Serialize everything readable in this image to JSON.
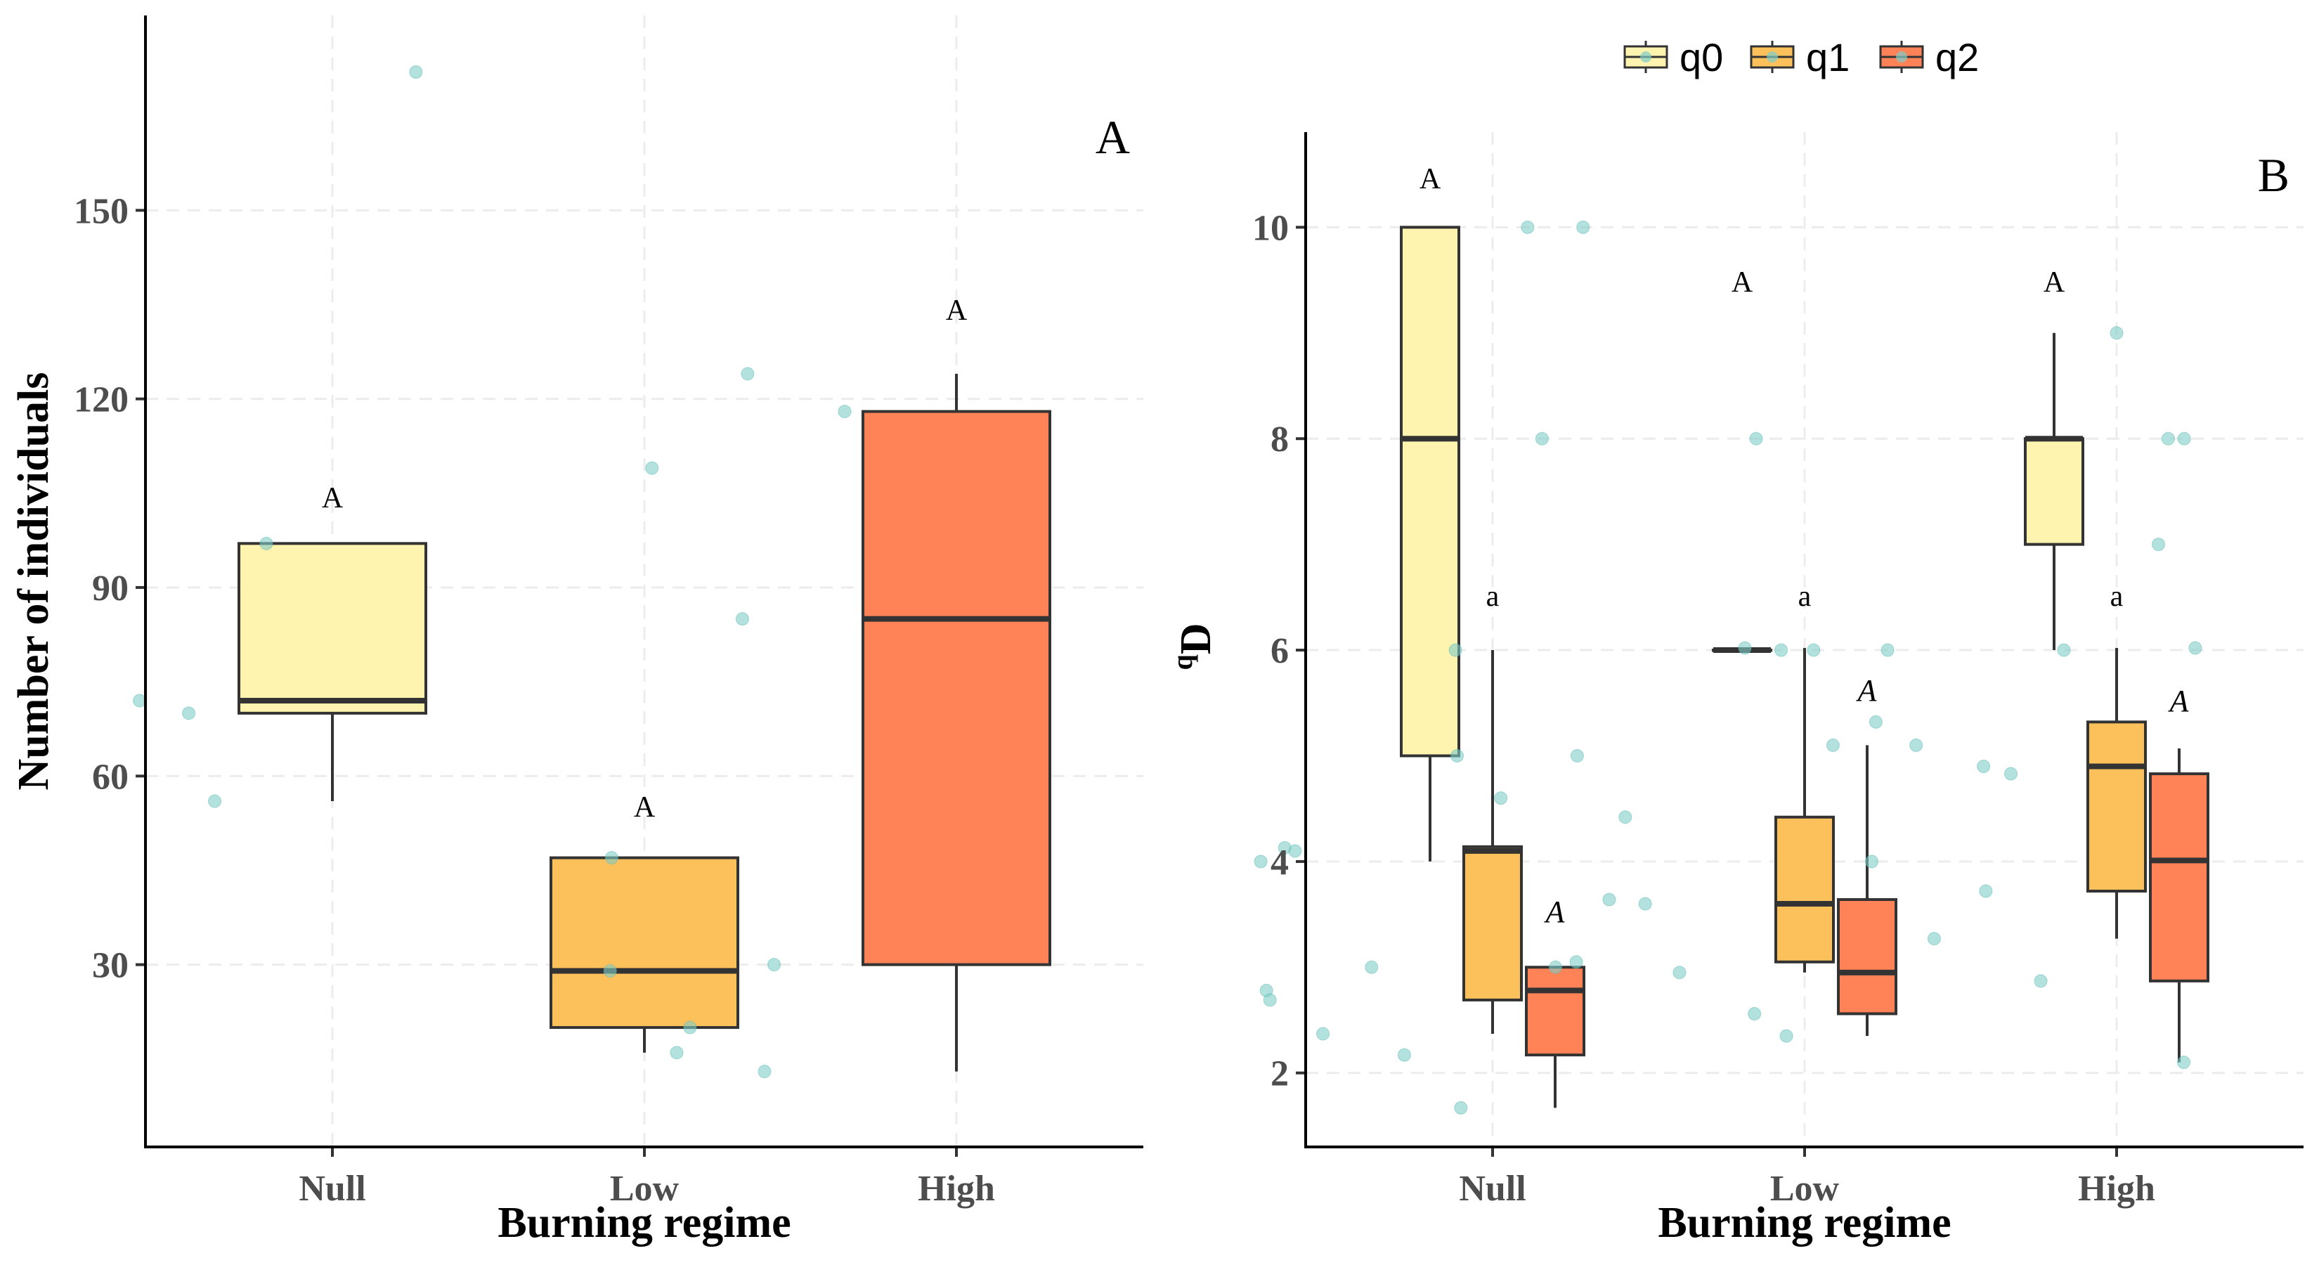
{
  "colors": {
    "q0": "#fff3b0",
    "q1": "#fdc15b",
    "q2": "#ff8357",
    "points": "#7fcdc8",
    "box_edge": "#333333"
  },
  "chart_data": [
    {
      "panel": "A",
      "type": "boxplot",
      "xlabel": "Burning regime",
      "ylabel": "Number of individuals",
      "categories": [
        "Null",
        "Low",
        "High"
      ],
      "ylim": [
        1,
        181
      ],
      "yticks": [
        30,
        60,
        90,
        120,
        150
      ],
      "grid": true,
      "boxes": [
        {
          "category": "Null",
          "group": "q0",
          "min": 56,
          "q1": 70,
          "median": 72,
          "q3": 97,
          "max": 97,
          "letter": "A"
        },
        {
          "category": "Low",
          "group": "q1",
          "min": 16,
          "q1": 20,
          "median": 29,
          "q3": 47,
          "max": 47,
          "letter": "A"
        },
        {
          "category": "High",
          "group": "q2",
          "min": 13,
          "q1": 30,
          "median": 85,
          "q3": 118,
          "max": 124,
          "letter": "A"
        }
      ],
      "points": [
        {
          "category": "Null",
          "y": 56
        },
        {
          "category": "Null",
          "y": 70
        },
        {
          "category": "Null",
          "y": 72
        },
        {
          "category": "Null",
          "y": 97
        },
        {
          "category": "Null",
          "y": 172
        },
        {
          "category": "Low",
          "y": 16
        },
        {
          "category": "Low",
          "y": 20
        },
        {
          "category": "Low",
          "y": 29
        },
        {
          "category": "Low",
          "y": 47
        },
        {
          "category": "Low",
          "y": 109
        },
        {
          "category": "High",
          "y": 13
        },
        {
          "category": "High",
          "y": 30
        },
        {
          "category": "High",
          "y": 85
        },
        {
          "category": "High",
          "y": 118
        },
        {
          "category": "High",
          "y": 124
        }
      ]
    },
    {
      "panel": "B",
      "type": "boxplot",
      "xlabel": "Burning regime",
      "ylabel": "qD",
      "categories": [
        "Null",
        "Low",
        "High"
      ],
      "series": [
        {
          "name": "q0"
        },
        {
          "name": "q1"
        },
        {
          "name": "q2"
        }
      ],
      "legend": "top",
      "ylim": [
        1.3,
        10.9
      ],
      "yticks": [
        2,
        4,
        6,
        8,
        10
      ],
      "grid": true,
      "boxes": [
        {
          "category": "Null",
          "group": "q0",
          "min": 4,
          "q1": 5,
          "median": 8,
          "q3": 10,
          "max": 10,
          "letter": "A"
        },
        {
          "category": "Null",
          "group": "q1",
          "min": 2.37,
          "q1": 2.69,
          "median": 4.1,
          "q3": 4.14,
          "max": 6,
          "letter": "a"
        },
        {
          "category": "Null",
          "group": "q2",
          "min": 1.67,
          "q1": 2.17,
          "median": 2.78,
          "q3": 3.0,
          "max": 3.0,
          "letter": "A"
        },
        {
          "category": "Low",
          "group": "q0",
          "min": 6,
          "q1": 6,
          "median": 6,
          "q3": 6,
          "max": 6,
          "letter": "A"
        },
        {
          "category": "Low",
          "group": "q1",
          "min": 2.95,
          "q1": 3.05,
          "median": 3.6,
          "q3": 4.42,
          "max": 6.02,
          "letter": "a"
        },
        {
          "category": "Low",
          "group": "q2",
          "min": 2.35,
          "q1": 2.56,
          "median": 2.95,
          "q3": 3.64,
          "max": 5.1,
          "letter": "A"
        },
        {
          "category": "High",
          "group": "q0",
          "min": 6,
          "q1": 7,
          "median": 8,
          "q3": 8,
          "max": 9,
          "letter": "A"
        },
        {
          "category": "High",
          "group": "q1",
          "min": 3.27,
          "q1": 3.72,
          "median": 4.9,
          "q3": 5.32,
          "max": 6.02,
          "letter": "a"
        },
        {
          "category": "High",
          "group": "q2",
          "min": 2.1,
          "q1": 2.87,
          "median": 4.01,
          "q3": 4.83,
          "max": 5.07,
          "letter": "A"
        }
      ],
      "points": [
        {
          "category": "Null",
          "y": 10
        },
        {
          "category": "Null",
          "y": 10
        },
        {
          "category": "Null",
          "y": 8
        },
        {
          "category": "Null",
          "y": 6
        },
        {
          "category": "Null",
          "y": 5.0
        },
        {
          "category": "Null",
          "y": 4.6
        },
        {
          "category": "Null",
          "y": 4.13
        },
        {
          "category": "Null",
          "y": 4.1
        },
        {
          "category": "Null",
          "y": 4.0
        },
        {
          "category": "Null",
          "y": 3.0
        },
        {
          "category": "Null",
          "y": 2.78
        },
        {
          "category": "Null",
          "y": 2.69
        },
        {
          "category": "Null",
          "y": 2.37
        },
        {
          "category": "Null",
          "y": 2.17
        },
        {
          "category": "Null",
          "y": 1.67
        },
        {
          "category": "Low",
          "y": 8
        },
        {
          "category": "Low",
          "y": 6.02
        },
        {
          "category": "Low",
          "y": 6.0
        },
        {
          "category": "Low",
          "y": 6
        },
        {
          "category": "Low",
          "y": 6
        },
        {
          "category": "Low",
          "y": 5.1
        },
        {
          "category": "Low",
          "y": 5.0
        },
        {
          "category": "Low",
          "y": 4.42
        },
        {
          "category": "Low",
          "y": 3.64
        },
        {
          "category": "Low",
          "y": 3.6
        },
        {
          "category": "Low",
          "y": 3.05
        },
        {
          "category": "Low",
          "y": 3.0
        },
        {
          "category": "Low",
          "y": 2.95
        },
        {
          "category": "Low",
          "y": 2.56
        },
        {
          "category": "Low",
          "y": 2.35
        },
        {
          "category": "High",
          "y": 9
        },
        {
          "category": "High",
          "y": 8
        },
        {
          "category": "High",
          "y": 8
        },
        {
          "category": "High",
          "y": 7
        },
        {
          "category": "High",
          "y": 6.02
        },
        {
          "category": "High",
          "y": 6.0
        },
        {
          "category": "High",
          "y": 5.32
        },
        {
          "category": "High",
          "y": 5.1
        },
        {
          "category": "High",
          "y": 4.9
        },
        {
          "category": "High",
          "y": 4.83
        },
        {
          "category": "High",
          "y": 4.0
        },
        {
          "category": "High",
          "y": 3.72
        },
        {
          "category": "High",
          "y": 3.27
        },
        {
          "category": "High",
          "y": 2.87
        },
        {
          "category": "High",
          "y": 2.1
        }
      ]
    }
  ]
}
